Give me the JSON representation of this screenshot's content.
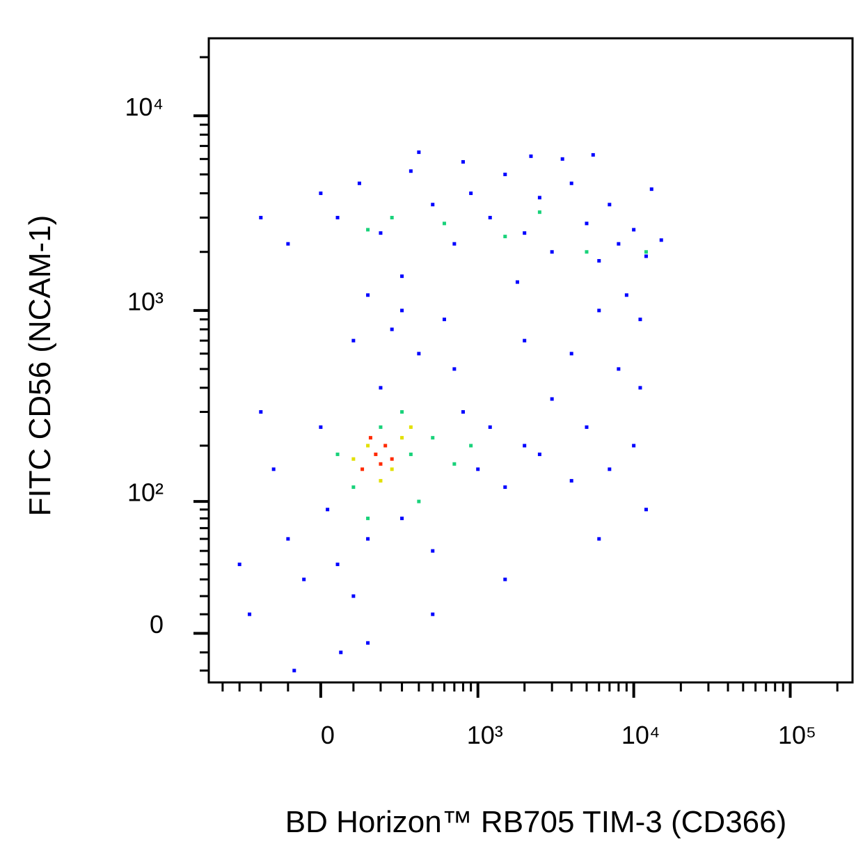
{
  "chart_data": {
    "type": "scatter",
    "x_label": "BD Horizon™ RB705 TIM-3 (CD366)",
    "y_label": "FITC CD56 (NCAM-1)",
    "scale": "biexponential",
    "xlim": [
      -500,
      250000
    ],
    "ylim": [
      -27,
      25000
    ],
    "xticks": [
      0,
      {
        "value": 1000,
        "label": "10³"
      },
      {
        "value": 10000,
        "label": "10⁴"
      },
      {
        "value": 100000,
        "label": "10⁵"
      }
    ],
    "yticks": [
      0,
      {
        "value": 100,
        "label": "10²"
      },
      {
        "value": 1000,
        "label": "10³"
      },
      {
        "value": 10000,
        "label": "10⁴"
      }
    ],
    "xminorticks": [
      -400,
      -300,
      -200,
      -100,
      100,
      200,
      300,
      400,
      500,
      600,
      700,
      800,
      900,
      2000,
      3000,
      4000,
      5000,
      6000,
      7000,
      8000,
      9000,
      20000,
      30000,
      40000,
      50000,
      60000,
      70000,
      80000,
      90000,
      200000
    ],
    "yminorticks": [
      -20,
      -10,
      10,
      20,
      30,
      40,
      50,
      60,
      70,
      80,
      90,
      200,
      300,
      400,
      500,
      600,
      700,
      800,
      900,
      2000,
      3000,
      4000,
      5000,
      6000,
      7000,
      8000,
      9000,
      20000
    ],
    "series": [
      {
        "color": "#0000ff",
        "x": [
          50,
          120,
          200,
          350,
          500,
          700,
          900,
          1200,
          1500,
          2000,
          2500,
          3000,
          4000,
          5000,
          6000,
          7000,
          8000,
          10000,
          12000,
          15000,
          -100,
          0,
          300,
          1800,
          9000,
          11000,
          6000,
          800,
          3500,
          13000,
          -200,
          400,
          2200,
          5500,
          150,
          250,
          400,
          300,
          100,
          600,
          2000,
          4000,
          8000,
          11000,
          700,
          -200,
          -150,
          -100,
          -50,
          0,
          20,
          50,
          100,
          150,
          300,
          500,
          800,
          1000,
          1200,
          1500,
          2000,
          2500,
          3000,
          4000,
          5000,
          7000,
          10000,
          12000,
          -300,
          -250,
          60,
          -80,
          1500,
          6000,
          200,
          150,
          500
        ],
        "y": [
          3000,
          4500,
          2500,
          5200,
          3500,
          2200,
          4000,
          3000,
          5000,
          2500,
          3800,
          2000,
          4500,
          2800,
          1800,
          3500,
          2200,
          2600,
          1900,
          2300,
          2200,
          4000,
          1500,
          1400,
          1200,
          900,
          1000,
          5800,
          6000,
          4200,
          3000,
          6500,
          6200,
          6300,
          1200,
          800,
          600,
          1000,
          700,
          900,
          700,
          600,
          500,
          400,
          500,
          300,
          150,
          60,
          30,
          250,
          90,
          40,
          20,
          60,
          80,
          50,
          300,
          150,
          250,
          120,
          200,
          180,
          350,
          130,
          250,
          150,
          200,
          90,
          40,
          10,
          -10,
          -20,
          30,
          60,
          400,
          -5,
          10
        ]
      },
      {
        "color": "#19d27a",
        "x": [
          200,
          350,
          100,
          500,
          700,
          150,
          300,
          250,
          600,
          150,
          1500,
          2500,
          5000,
          900,
          50,
          400,
          12000
        ],
        "y": [
          250,
          180,
          120,
          220,
          160,
          80,
          300,
          3000,
          2800,
          2600,
          2400,
          3200,
          2000,
          200,
          180,
          100,
          2000
        ]
      },
      {
        "color": "#e2e000",
        "x": [
          150,
          250,
          100,
          300,
          200,
          350
        ],
        "y": [
          200,
          150,
          170,
          220,
          130,
          250
        ]
      },
      {
        "color": "#ff2a00",
        "x": [
          180,
          220,
          130,
          250,
          160,
          200
        ],
        "y": [
          180,
          200,
          150,
          170,
          220,
          160
        ]
      }
    ]
  }
}
